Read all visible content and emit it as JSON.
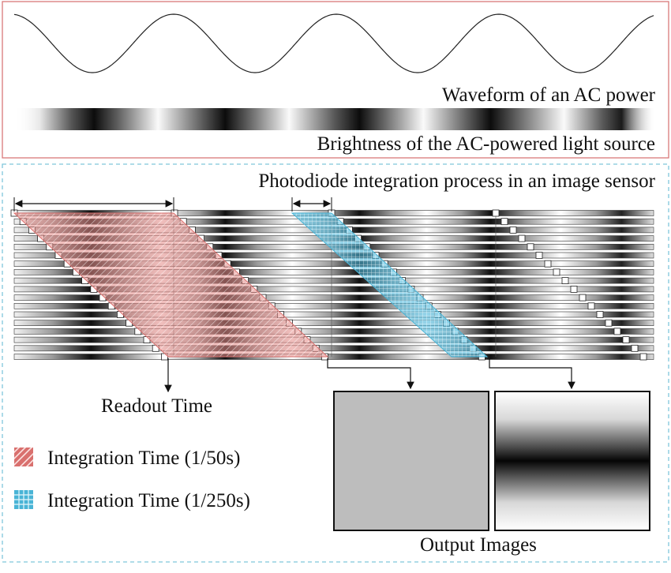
{
  "top_panel": {
    "waveform_label": "Waveform of an AC power",
    "brightness_label": "Brightness of the AC-powered light source",
    "border_color": "#d9787a"
  },
  "bottom_panel": {
    "title": "Photodiode integration process in an image sensor",
    "border_color": "#7fc6db",
    "readout_label": "Readout Time",
    "output_label": "Output Images",
    "row_count": 18
  },
  "legend": [
    {
      "label": "Integration Time (1/50s)",
      "color": "#d9706e",
      "pattern": "hatch-diagonal"
    },
    {
      "label": "Integration Time (1/250s)",
      "color": "#49b4d6",
      "pattern": "grid"
    }
  ],
  "output_images": [
    {
      "name": "uniform-gray-image",
      "fill": "#bdbdbd"
    },
    {
      "name": "banded-image",
      "fill": "gradient-dark-band"
    }
  ]
}
